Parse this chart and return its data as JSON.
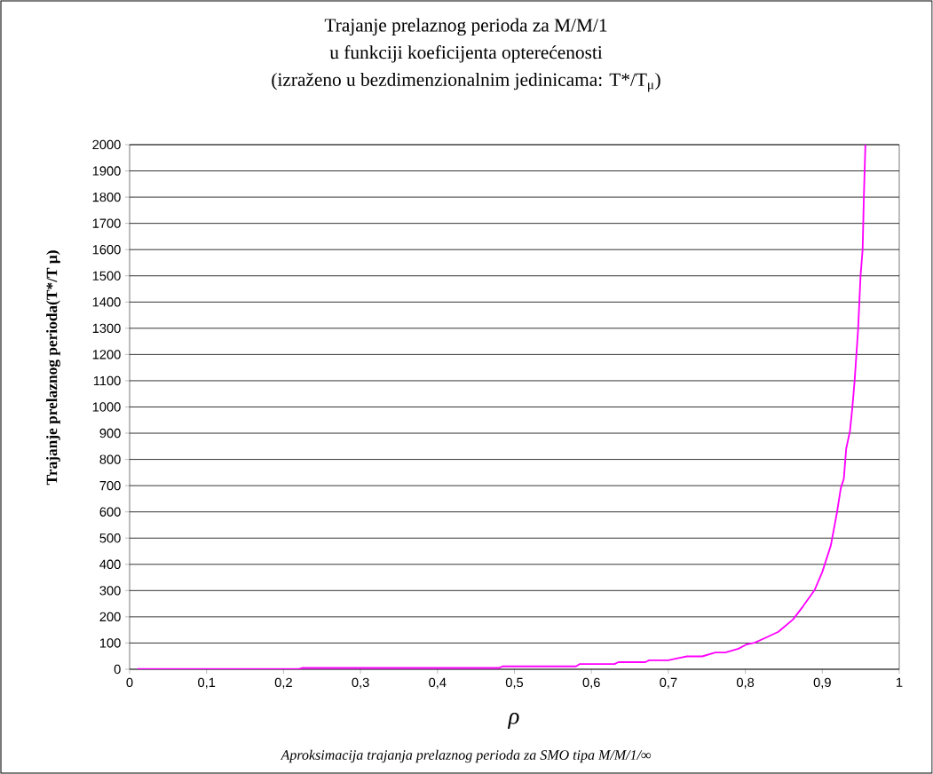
{
  "chart_data": {
    "type": "line",
    "title": "Trajanje prelaznog perioda za M/M/1\nu funkciji koeficijenta opterećenosti\n(izraženo u bezdimenzionalnim jedinicama: T*/T$_{μ}$)",
    "xlabel": "ρ",
    "ylabel": "Trajanje prelaznog perioda(T*/T μ)",
    "annotations": [
      "Aproksimacija trajanja prelaznog perioda za SMO tipa M/M/1/∞"
    ],
    "x": [
      0.01,
      0.22,
      0.225,
      0.48,
      0.485,
      0.58,
      0.585,
      0.63,
      0.635,
      0.67,
      0.675,
      0.7,
      0.709,
      0.724,
      0.744,
      0.761,
      0.774,
      0.791,
      0.801,
      0.812,
      0.827,
      0.843,
      0.862,
      0.875,
      0.89,
      0.9,
      0.911,
      0.919,
      0.924,
      0.928,
      0.931,
      0.936,
      0.939,
      0.942,
      0.9466,
      0.9497,
      0.9524,
      0.954,
      0.956
    ],
    "series": [
      {
        "color": "#ff00ff",
        "values": [
          1,
          1,
          5,
          5,
          11,
          11,
          20,
          20,
          27,
          27,
          34,
          34,
          40,
          49,
          49,
          64,
          64,
          78,
          94,
          101,
          121,
          143,
          190,
          240,
          302,
          371,
          471,
          596,
          690,
          727,
          840,
          909,
          996,
          1100,
          1300,
          1500,
          1600,
          1800,
          2000
        ]
      }
    ],
    "xlim": [
      0,
      1
    ],
    "xticks": [
      0,
      {
        "value": 0.1,
        "label": "0,1"
      },
      {
        "value": 0.2,
        "label": "0,2"
      },
      {
        "value": 0.3,
        "label": "0,3"
      },
      {
        "value": 0.4,
        "label": "0,4"
      },
      {
        "value": 0.5,
        "label": "0,5"
      },
      {
        "value": 0.6,
        "label": "0,6"
      },
      {
        "value": 0.7,
        "label": "0,7"
      },
      {
        "value": 0.8,
        "label": "0,8"
      },
      {
        "value": 0.9,
        "label": "0,9"
      },
      1
    ],
    "ylim": [
      0,
      2000
    ],
    "yticks": [
      0,
      100,
      200,
      300,
      400,
      500,
      600,
      700,
      800,
      900,
      1000,
      1100,
      1200,
      1300,
      1400,
      1500,
      1600,
      1700,
      1800,
      1900,
      2000
    ],
    "grid": "y",
    "marker": "none",
    "line_style": "solid"
  }
}
